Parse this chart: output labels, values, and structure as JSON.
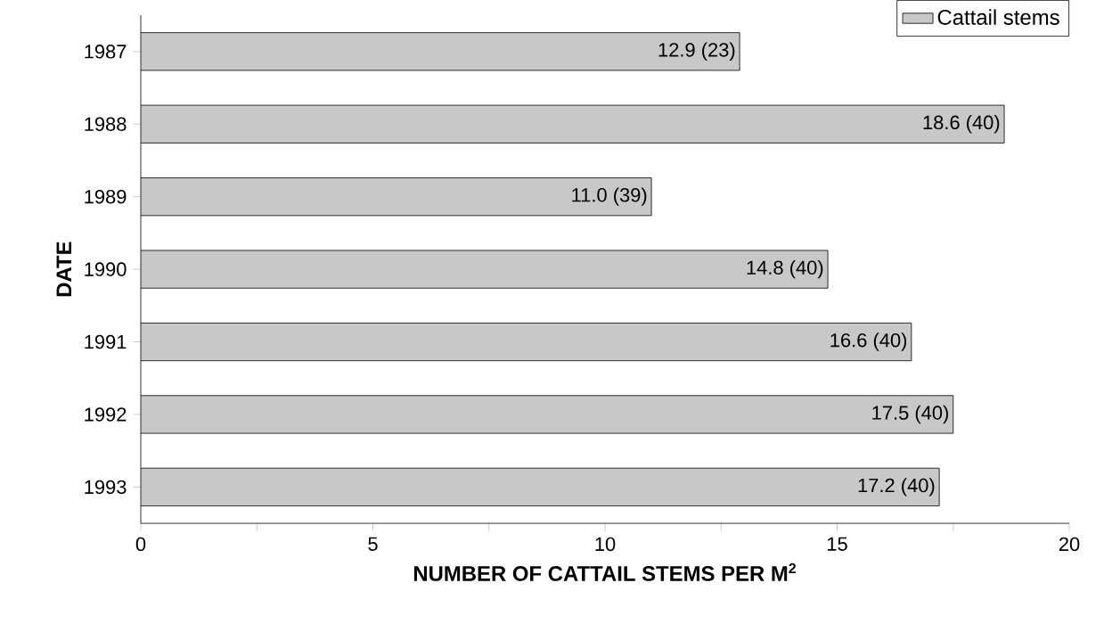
{
  "chart_data": {
    "type": "bar",
    "orientation": "horizontal",
    "xlabel": "NUMBER OF CATTAIL STEMS PER M$^{2}$",
    "ylabel": "DATE",
    "categories": [
      "1987",
      "1988",
      "1989",
      "1990",
      "1991",
      "1992",
      "1993"
    ],
    "series": [
      {
        "name": "Cattail stems",
        "color": "#c8c8c8",
        "values": [
          12.9,
          18.6,
          11.0,
          14.8,
          16.6,
          17.5,
          17.2
        ],
        "value_labels": [
          "12.9 (23)",
          "18.6 (40)",
          "11.0 (39)",
          "14.8 (40)",
          "16.6 (40)",
          "17.5 (40)",
          "17.2 (40)"
        ]
      }
    ],
    "xlim": [
      0,
      20
    ],
    "xticks": [
      0,
      {
        "value": 2.5,
        "label": null
      },
      5,
      {
        "value": 7.5,
        "label": null
      },
      10,
      {
        "value": 12.5,
        "label": null
      },
      15,
      {
        "value": 17.5,
        "label": null
      },
      20
    ],
    "legend": "top right",
    "grid": false
  }
}
